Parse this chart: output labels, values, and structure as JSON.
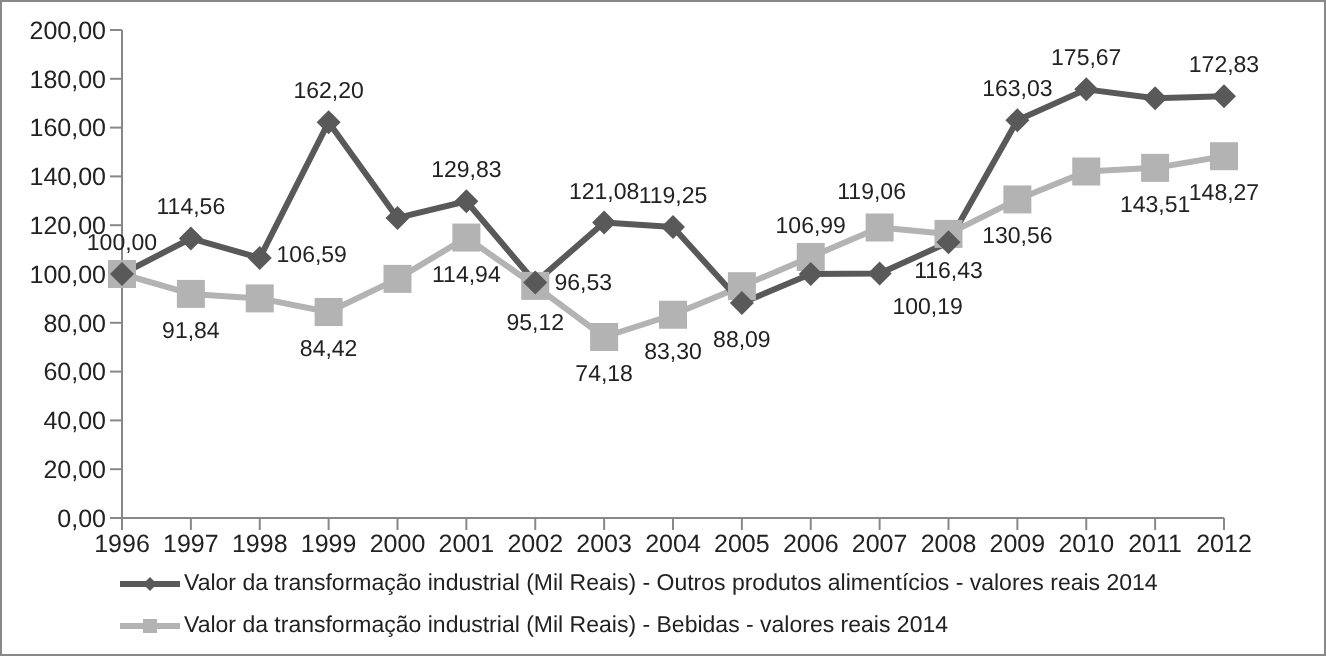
{
  "chart_data": {
    "type": "line",
    "categories": [
      "1996",
      "1997",
      "1998",
      "1999",
      "2000",
      "2001",
      "2002",
      "2003",
      "2004",
      "2005",
      "2006",
      "2007",
      "2008",
      "2009",
      "2010",
      "2011",
      "2012"
    ],
    "series": [
      {
        "name": "Valor da transformação industrial (Mil Reais) - Outros produtos alimentícios - valores reais 2014",
        "color": "#595959",
        "marker": "diamond",
        "values": [
          100,
          114.56,
          106.59,
          162.2,
          123,
          129.83,
          96.53,
          121.08,
          119.25,
          88.09,
          100,
          100.19,
          113,
          163.03,
          175.67,
          172,
          172.83
        ],
        "value_labels": [
          "100,00",
          "114,56",
          "106,59",
          "162,20",
          null,
          "129,83",
          "96,53",
          "121,08",
          "119,25",
          "88,09",
          null,
          "100,19",
          null,
          "163,03",
          "175,67",
          null,
          "172,83"
        ]
      },
      {
        "name": "Valor da transformação industrial (Mil Reais) - Bebidas - valores reais 2014",
        "color": "#b3b3b3",
        "marker": "square",
        "values": [
          100,
          91.84,
          90,
          84.42,
          98,
          114.94,
          95.12,
          74.18,
          83.3,
          95,
          106.99,
          119.06,
          116.43,
          130.56,
          142,
          143.51,
          148.27
        ],
        "value_labels": [
          null,
          "91,84",
          null,
          "84,42",
          null,
          "114,94",
          "95,12",
          "74,18",
          "83,30",
          null,
          "106,99",
          "119,06",
          "116,43",
          "130,56",
          null,
          "143,51",
          "148,27"
        ]
      }
    ],
    "ylim": [
      0,
      200
    ],
    "yticks": [
      {
        "value": 0,
        "label": "0,00"
      },
      {
        "value": 20,
        "label": "20,00"
      },
      {
        "value": 40,
        "label": "40,00"
      },
      {
        "value": 60,
        "label": "60,00"
      },
      {
        "value": 80,
        "label": "80,00"
      },
      {
        "value": 100,
        "label": "100,00"
      },
      {
        "value": 120,
        "label": "120,00"
      },
      {
        "value": 140,
        "label": "140,00"
      },
      {
        "value": 160,
        "label": "160,00"
      },
      {
        "value": 180,
        "label": "180,00"
      },
      {
        "value": 200,
        "label": "200,00"
      }
    ],
    "grid": false,
    "legend": "bottom"
  }
}
